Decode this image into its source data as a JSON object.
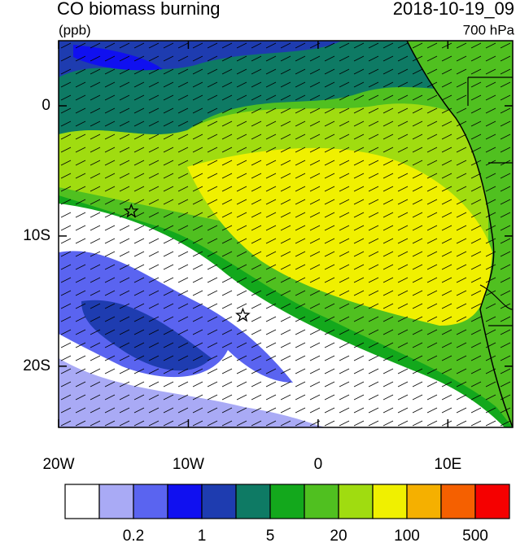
{
  "header": {
    "title": "CO biomass burning",
    "units": "(ppb)",
    "date": "2018-10-19_09",
    "level": "700 hPa"
  },
  "map": {
    "lon_range": [
      -20,
      15
    ],
    "lat_range": [
      -24.7,
      5
    ],
    "lon_ticks": [
      {
        "value": -20,
        "label": "20W"
      },
      {
        "value": -10,
        "label": "10W"
      },
      0,
      {
        "value": 10,
        "label": "10E"
      }
    ],
    "lat_ticks": [
      0,
      {
        "value": -10,
        "label": "10S"
      },
      {
        "value": -20,
        "label": "20S"
      }
    ],
    "markers": [
      {
        "lon": -14.4,
        "lat": -8.1
      },
      {
        "lon": -5.8,
        "lat": -16.1
      }
    ]
  },
  "colorbar": {
    "colors": [
      "#ffffff",
      "#a9aaf5",
      "#5a64f0",
      "#1010f0",
      "#1e3cb0",
      "#0e7a64",
      "#13a81c",
      "#50c020",
      "#a0dc10",
      "#f0f000",
      "#f5b000",
      "#f56000",
      "#f50000"
    ],
    "labels": [
      "0.2",
      "1",
      "5",
      "20",
      "100",
      "500"
    ]
  }
}
